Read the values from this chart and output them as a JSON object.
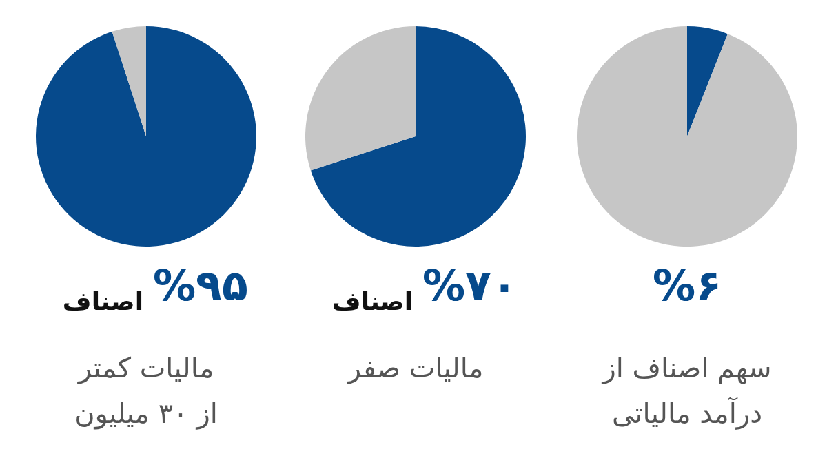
{
  "chart_data": [
    {
      "type": "pie",
      "categories": [
        null,
        null
      ],
      "values": [
        95,
        5
      ],
      "colors": [
        "#064a8c",
        "#c6c6c6"
      ],
      "annotations": [
        "%۹۵"
      ],
      "subtitle": "اصناف",
      "title": "مالیات کمتر از ۳۰ میلیون"
    },
    {
      "type": "pie",
      "categories": [
        null,
        null
      ],
      "values": [
        70,
        30
      ],
      "colors": [
        "#064a8c",
        "#c6c6c6"
      ],
      "annotations": [
        "%۷۰"
      ],
      "subtitle": "اصناف",
      "title": "مالیات صفر"
    },
    {
      "type": "pie",
      "categories": [
        null,
        null
      ],
      "values": [
        6,
        94
      ],
      "colors": [
        "#064a8c",
        "#c6c6c6"
      ],
      "annotations": [
        "%۶"
      ],
      "title": "سهم اصناف از درآمد مالیاتی"
    }
  ]
}
